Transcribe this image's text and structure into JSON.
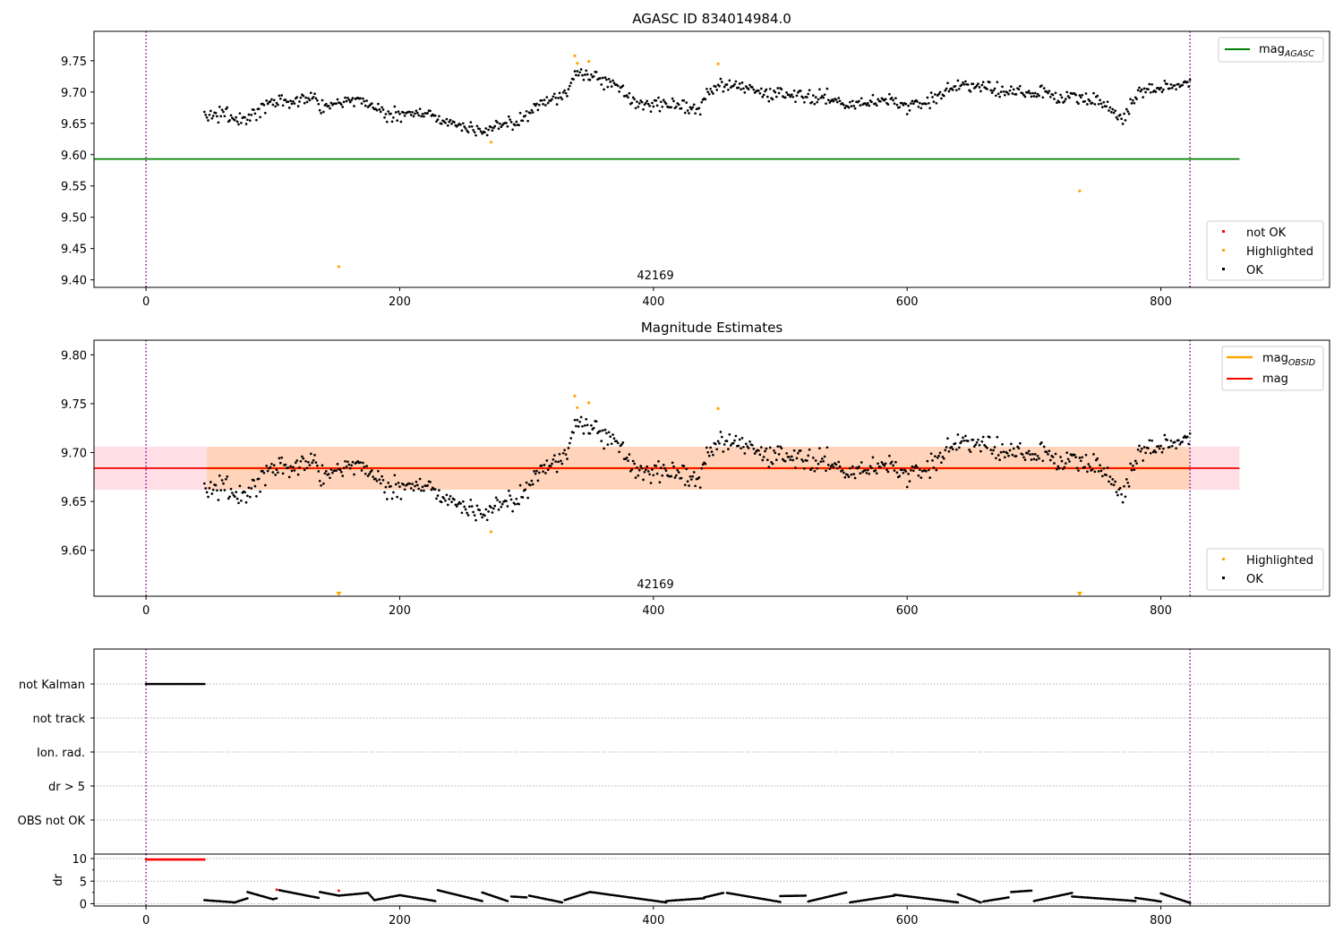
{
  "chart_data": [
    {
      "id": "top",
      "type": "scatter",
      "title": "AGASC ID 834014984.0",
      "xlabel": "",
      "ylabel": "",
      "xlim": [
        -41,
        933
      ],
      "ylim": [
        9.388,
        9.797
      ],
      "xticks": [
        0,
        200,
        400,
        600,
        800
      ],
      "xtick_labels": [
        "0",
        "200",
        "400",
        "600",
        "800"
      ],
      "yticks": [
        9.4,
        9.45,
        9.5,
        9.55,
        9.6,
        9.65,
        9.7,
        9.75
      ],
      "ytick_labels": [
        "9.40",
        "9.45",
        "9.50",
        "9.55",
        "9.60",
        "9.65",
        "9.70",
        "9.75"
      ],
      "obs_boundaries": [
        0,
        823
      ],
      "obs_label": {
        "x": 411,
        "y": 9.4,
        "text": "42169"
      },
      "mag_agasc_line": {
        "value": 9.593,
        "x_range": [
          -41,
          862
        ],
        "color": "#008000"
      },
      "highlighted": [
        {
          "x": 152,
          "y": 9.421
        },
        {
          "x": 272,
          "y": 9.62
        },
        {
          "x": 338,
          "y": 9.758
        },
        {
          "x": 340,
          "y": 9.746
        },
        {
          "x": 349,
          "y": 9.749
        },
        {
          "x": 451,
          "y": 9.745
        },
        {
          "x": 736,
          "y": 9.542
        }
      ],
      "not_ok": [],
      "legend_line": {
        "label": "mag",
        "sub": "AGASC",
        "location": "upper right"
      },
      "legend_points": {
        "location": "lower right",
        "entries": [
          {
            "label": "not OK",
            "color": "#ff0000"
          },
          {
            "label": "Highlighted",
            "color": "#ffa500"
          },
          {
            "label": "OK",
            "color": "#000000"
          }
        ]
      }
    },
    {
      "id": "middle",
      "type": "scatter",
      "title": "Magnitude Estimates",
      "xlabel": "",
      "ylabel": "",
      "xlim": [
        -41,
        933
      ],
      "ylim": [
        9.553,
        9.815
      ],
      "xticks": [
        0,
        200,
        400,
        600,
        800
      ],
      "xtick_labels": [
        "0",
        "200",
        "400",
        "600",
        "800"
      ],
      "yticks": [
        9.6,
        9.65,
        9.7,
        9.75,
        9.8
      ],
      "ytick_labels": [
        "9.60",
        "9.65",
        "9.70",
        "9.75",
        "9.80"
      ],
      "obs_boundaries": [
        0,
        823
      ],
      "obs_label": {
        "x": 411,
        "y": 9.559,
        "text": "42169"
      },
      "mag_line": {
        "value": 9.684,
        "x_range": [
          -41,
          862
        ],
        "color": "#ff0000"
      },
      "mag_band": {
        "low": 9.662,
        "high": 9.706,
        "x_range": [
          -41,
          862
        ],
        "color": "#ffc0cb"
      },
      "mag_obsid_line": {
        "value": 9.684,
        "x_range": [
          48,
          823
        ],
        "color": "#ffa500"
      },
      "mag_obsid_band": {
        "low": 9.662,
        "high": 9.706,
        "x_range": [
          48,
          823
        ],
        "color": "#ffa500"
      },
      "highlighted": [
        {
          "x": 272,
          "y": 9.619
        },
        {
          "x": 338,
          "y": 9.758
        },
        {
          "x": 340,
          "y": 9.746
        },
        {
          "x": 349,
          "y": 9.751
        },
        {
          "x": 451,
          "y": 9.745
        }
      ],
      "out_of_range_markers": [
        {
          "x": 152
        },
        {
          "x": 736
        }
      ],
      "legend_lines": {
        "location": "upper right",
        "entries": [
          {
            "label": "mag",
            "sub": "OBSID",
            "color": "#ffa500"
          },
          {
            "label": "mag",
            "sub": "",
            "color": "#ff0000"
          }
        ]
      },
      "legend_points": {
        "location": "lower right",
        "entries": [
          {
            "label": "Highlighted",
            "color": "#ffa500"
          },
          {
            "label": "OK",
            "color": "#000000"
          }
        ]
      }
    },
    {
      "id": "flags",
      "type": "scatter",
      "xlim": [
        -41,
        933
      ],
      "categories": [
        "not Kalman",
        "not track",
        "Ion. rad.",
        "dr > 5",
        "OBS not OK"
      ],
      "obs_boundaries": [
        0,
        823
      ],
      "not_kalman_range": [
        0,
        46
      ],
      "grid": "horizontal dotted"
    },
    {
      "id": "dr",
      "type": "scatter",
      "ylabel": "dr",
      "xlim": [
        -41,
        933
      ],
      "ylim": [
        -0.5,
        11
      ],
      "xticks": [
        0,
        200,
        400,
        600,
        800
      ],
      "xtick_labels": [
        "0",
        "200",
        "400",
        "600",
        "800"
      ],
      "yticks": [
        0,
        5,
        10
      ],
      "ytick_labels": [
        "0",
        "5",
        "10"
      ],
      "obs_boundaries": [
        0,
        823
      ],
      "red_top_range": [
        0,
        46
      ],
      "red_top_value": 9.8,
      "red_points": [
        {
          "x": 103,
          "y": 3.1
        },
        {
          "x": 152,
          "y": 2.9
        }
      ],
      "arcs": [
        {
          "x0": 46,
          "x1": 70,
          "y0": 0.8,
          "y1": 0.3
        },
        {
          "x0": 70,
          "x1": 80,
          "y0": 0.3,
          "y1": 1.2
        },
        {
          "x0": 80,
          "x1": 100,
          "y0": 2.6,
          "y1": 1.0
        },
        {
          "x0": 100,
          "x1": 103,
          "y0": 1.0,
          "y1": 1.2
        },
        {
          "x0": 105,
          "x1": 136,
          "y0": 3.0,
          "y1": 1.3
        },
        {
          "x0": 137,
          "x1": 152,
          "y0": 2.6,
          "y1": 1.8
        },
        {
          "x0": 152,
          "x1": 175,
          "y0": 1.8,
          "y1": 2.4
        },
        {
          "x0": 175,
          "x1": 180,
          "y0": 2.4,
          "y1": 0.8
        },
        {
          "x0": 180,
          "x1": 200,
          "y0": 0.8,
          "y1": 1.9
        },
        {
          "x0": 200,
          "x1": 228,
          "y0": 1.9,
          "y1": 0.6
        },
        {
          "x0": 230,
          "x1": 265,
          "y0": 3.0,
          "y1": 0.6
        },
        {
          "x0": 265,
          "x1": 285,
          "y0": 2.5,
          "y1": 0.6
        },
        {
          "x0": 288,
          "x1": 300,
          "y0": 1.6,
          "y1": 1.4
        },
        {
          "x0": 302,
          "x1": 328,
          "y0": 1.8,
          "y1": 0.3
        },
        {
          "x0": 330,
          "x1": 350,
          "y0": 0.8,
          "y1": 2.6
        },
        {
          "x0": 350,
          "x1": 410,
          "y0": 2.6,
          "y1": 0.3
        },
        {
          "x0": 410,
          "x1": 440,
          "y0": 0.6,
          "y1": 1.2
        },
        {
          "x0": 440,
          "x1": 455,
          "y0": 1.4,
          "y1": 2.4
        },
        {
          "x0": 458,
          "x1": 500,
          "y0": 2.4,
          "y1": 0.4
        },
        {
          "x0": 500,
          "x1": 520,
          "y0": 1.7,
          "y1": 1.8
        },
        {
          "x0": 522,
          "x1": 552,
          "y0": 0.5,
          "y1": 2.5
        },
        {
          "x0": 555,
          "x1": 590,
          "y0": 0.3,
          "y1": 1.8
        },
        {
          "x0": 590,
          "x1": 640,
          "y0": 2.0,
          "y1": 0.3
        },
        {
          "x0": 640,
          "x1": 658,
          "y0": 2.1,
          "y1": 0.3
        },
        {
          "x0": 660,
          "x1": 680,
          "y0": 0.5,
          "y1": 1.4
        },
        {
          "x0": 682,
          "x1": 698,
          "y0": 2.6,
          "y1": 2.9
        },
        {
          "x0": 700,
          "x1": 730,
          "y0": 0.6,
          "y1": 2.4
        },
        {
          "x0": 730,
          "x1": 780,
          "y0": 1.6,
          "y1": 0.6
        },
        {
          "x0": 780,
          "x1": 800,
          "y0": 1.3,
          "y1": 0.5
        },
        {
          "x0": 800,
          "x1": 823,
          "y0": 2.3,
          "y1": 0.2
        }
      ]
    }
  ],
  "colors": {
    "ok": "#000000",
    "highlighted": "#ffa500",
    "not_ok": "#ff0000",
    "boundary": "#800080"
  }
}
